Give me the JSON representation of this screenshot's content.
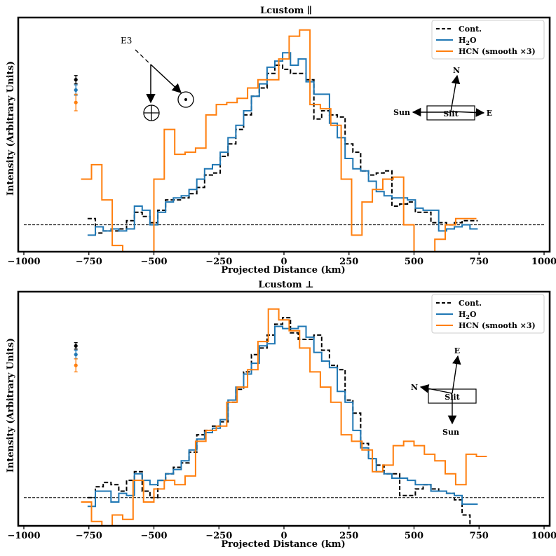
{
  "colors": {
    "cont": "#000000",
    "h2o": "#1f77b4",
    "hcn": "#ff7f0e",
    "baseline": "#000000"
  },
  "chart_data": [
    {
      "type": "line",
      "title": "Lcustom ∥",
      "xlabel": "Projected Distance (km)",
      "ylabel": "Intensity (Arbitrary Units)",
      "xlim": [
        -1000,
        1000
      ],
      "ylim": [
        -0.13,
        1.0
      ],
      "xticks": [
        -1000,
        -750,
        -500,
        -250,
        0,
        250,
        500,
        750,
        1000
      ],
      "xtick_labels": [
        "−1000",
        "−750",
        "−500",
        "−250",
        "0",
        "250",
        "500",
        "750",
        "1000"
      ],
      "baseline": 0,
      "legend": {
        "position": "top-right",
        "entries": [
          "Cont.",
          "H2O",
          "HCN (smooth ×3)"
        ]
      },
      "series": [
        {
          "name": "Cont.",
          "style": "dashed",
          "x": [
            -740,
            -710,
            -680,
            -650,
            -620,
            -590,
            -560,
            -530,
            -500,
            -470,
            -440,
            -410,
            -380,
            -350,
            -320,
            -290,
            -260,
            -230,
            -200,
            -170,
            -140,
            -110,
            -80,
            -50,
            -20,
            10,
            40,
            70,
            100,
            130,
            160,
            190,
            220,
            250,
            280,
            310,
            340,
            370,
            400,
            430,
            460,
            490,
            520,
            550,
            580,
            610,
            640,
            670,
            700,
            730
          ],
          "y": [
            0.03,
            -0.04,
            -0.03,
            -0.03,
            -0.02,
            0.02,
            0.06,
            0.04,
            0.01,
            0.07,
            0.12,
            0.12,
            0.13,
            0.15,
            0.18,
            0.24,
            0.25,
            0.33,
            0.39,
            0.46,
            0.53,
            0.62,
            0.66,
            0.73,
            0.77,
            0.75,
            0.73,
            0.73,
            0.7,
            0.51,
            0.55,
            0.53,
            0.52,
            0.39,
            0.35,
            0.26,
            0.24,
            0.25,
            0.26,
            0.09,
            0.1,
            0.11,
            0.06,
            0.06,
            0.01,
            0.01,
            0.0,
            0.01,
            0.02,
            0.02
          ]
        },
        {
          "name": "H2O",
          "style": "solid",
          "x": [
            -740,
            -710,
            -680,
            -650,
            -620,
            -590,
            -560,
            -530,
            -500,
            -470,
            -440,
            -410,
            -380,
            -350,
            -320,
            -290,
            -260,
            -230,
            -200,
            -170,
            -140,
            -110,
            -80,
            -50,
            -20,
            10,
            40,
            70,
            100,
            130,
            160,
            190,
            220,
            250,
            280,
            310,
            340,
            370,
            400,
            430,
            460,
            490,
            520,
            550,
            580,
            610,
            640,
            670,
            700,
            730
          ],
          "y": [
            -0.05,
            -0.01,
            -0.03,
            -0.02,
            -0.03,
            -0.02,
            0.09,
            0.07,
            0.0,
            0.06,
            0.11,
            0.13,
            0.14,
            0.17,
            0.22,
            0.27,
            0.29,
            0.35,
            0.42,
            0.48,
            0.55,
            0.62,
            0.68,
            0.76,
            0.79,
            0.83,
            0.77,
            0.8,
            0.69,
            0.63,
            0.63,
            0.49,
            0.42,
            0.32,
            0.27,
            0.26,
            0.21,
            0.16,
            0.14,
            0.13,
            0.13,
            0.12,
            0.08,
            0.07,
            0.07,
            -0.03,
            -0.02,
            -0.01,
            0.0,
            -0.02
          ]
        },
        {
          "name": "HCN (smooth ×3)",
          "style": "solid",
          "x": [
            -760,
            -720,
            -680,
            -640,
            -600,
            -560,
            -520,
            -480,
            -440,
            -400,
            -360,
            -320,
            -280,
            -240,
            -200,
            -160,
            -120,
            -80,
            -40,
            0,
            40,
            80,
            120,
            160,
            200,
            240,
            280,
            320,
            360,
            400,
            440,
            480,
            520,
            560,
            600,
            640,
            680,
            720
          ],
          "y": [
            0.22,
            0.29,
            0.12,
            -0.1,
            -0.15,
            -0.2,
            -0.14,
            0.22,
            0.46,
            0.34,
            0.35,
            0.37,
            0.53,
            0.58,
            0.59,
            0.61,
            0.66,
            0.7,
            0.7,
            0.8,
            0.91,
            0.94,
            0.58,
            0.56,
            0.48,
            0.22,
            -0.05,
            0.11,
            0.17,
            0.22,
            0.23,
            0.0,
            -0.16,
            -0.15,
            -0.07,
            0.0,
            0.03,
            0.03
          ]
        }
      ],
      "error_bars": [
        {
          "series": "Cont.",
          "x": -800,
          "y": 0.7,
          "err": 0.02
        },
        {
          "series": "H2O",
          "x": -800,
          "y": 0.65,
          "err": 0.025
        },
        {
          "series": "HCN (smooth ×3)",
          "x": -800,
          "y": 0.59,
          "err": 0.04
        }
      ],
      "annotations": {
        "event_label": "E3",
        "earth_symbol": "⊕",
        "sun_symbol": "⊙",
        "compass": {
          "up": "N",
          "left": "Sun",
          "right": "E",
          "box": "Slit"
        }
      }
    },
    {
      "type": "line",
      "title": "Lcustom ⊥",
      "xlabel": "Projected Distance (km)",
      "ylabel": "Intensity (Arbitrary Units)",
      "xlim": [
        -1000,
        1000
      ],
      "ylim": [
        -0.13,
        0.95
      ],
      "xticks": [
        -1000,
        -750,
        -500,
        -250,
        0,
        250,
        500,
        750,
        1000
      ],
      "xtick_labels": [
        "−1000",
        "−750",
        "−500",
        "−250",
        "0",
        "250",
        "500",
        "750",
        "1000"
      ],
      "baseline": 0,
      "legend": {
        "position": "top-right",
        "entries": [
          "Cont.",
          "H2O",
          "HCN (smooth ×3)"
        ]
      },
      "series": [
        {
          "name": "Cont.",
          "style": "dashed",
          "x": [
            -740,
            -710,
            -680,
            -650,
            -620,
            -590,
            -560,
            -530,
            -500,
            -470,
            -440,
            -410,
            -380,
            -350,
            -320,
            -290,
            -260,
            -230,
            -200,
            -170,
            -140,
            -110,
            -80,
            -50,
            -20,
            10,
            40,
            70,
            100,
            130,
            160,
            190,
            220,
            250,
            280,
            310,
            340,
            370,
            400,
            430,
            460,
            490,
            520,
            550,
            580,
            610,
            640,
            670,
            700,
            730
          ],
          "y": [
            0.0,
            0.05,
            0.07,
            0.06,
            0.03,
            0.08,
            0.12,
            0.03,
            0.0,
            0.08,
            0.11,
            0.14,
            0.16,
            0.21,
            0.29,
            0.31,
            0.33,
            0.35,
            0.44,
            0.5,
            0.58,
            0.66,
            0.69,
            0.75,
            0.8,
            0.83,
            0.76,
            0.73,
            0.73,
            0.75,
            0.68,
            0.61,
            0.59,
            0.45,
            0.39,
            0.25,
            0.18,
            0.15,
            0.11,
            0.11,
            0.01,
            0.01,
            0.04,
            0.06,
            0.04,
            0.03,
            0.02,
            -0.01,
            -0.08,
            -0.13
          ]
        },
        {
          "name": "H2O",
          "style": "solid",
          "x": [
            -740,
            -710,
            -680,
            -650,
            -620,
            -590,
            -560,
            -530,
            -500,
            -470,
            -440,
            -410,
            -380,
            -350,
            -320,
            -290,
            -260,
            -230,
            -200,
            -170,
            -140,
            -110,
            -80,
            -50,
            -20,
            10,
            40,
            70,
            100,
            130,
            160,
            190,
            220,
            250,
            280,
            310,
            340,
            370,
            400,
            430,
            460,
            490,
            520,
            550,
            580,
            610,
            640,
            670,
            700,
            730
          ],
          "y": [
            -0.04,
            0.03,
            0.03,
            -0.02,
            0.02,
            0.01,
            0.11,
            0.08,
            0.06,
            0.08,
            0.11,
            0.13,
            0.17,
            0.22,
            0.27,
            0.3,
            0.32,
            0.36,
            0.45,
            0.51,
            0.57,
            0.62,
            0.7,
            0.71,
            0.79,
            0.78,
            0.78,
            0.79,
            0.74,
            0.67,
            0.63,
            0.6,
            0.49,
            0.44,
            0.31,
            0.23,
            0.18,
            0.12,
            0.11,
            0.09,
            0.09,
            0.08,
            0.06,
            0.06,
            0.03,
            0.03,
            0.02,
            0.01,
            -0.03,
            -0.03
          ]
        },
        {
          "name": "HCN (smooth ×3)",
          "style": "solid",
          "x": [
            -760,
            -720,
            -680,
            -640,
            -600,
            -560,
            -520,
            -480,
            -440,
            -400,
            -360,
            -320,
            -280,
            -240,
            -200,
            -160,
            -120,
            -80,
            -40,
            0,
            40,
            80,
            120,
            160,
            200,
            240,
            280,
            320,
            360,
            400,
            440,
            480,
            520,
            560,
            600,
            640,
            680,
            720,
            760
          ],
          "y": [
            -0.02,
            -0.11,
            -0.13,
            -0.08,
            -0.1,
            0.08,
            -0.02,
            0.04,
            0.08,
            0.06,
            0.1,
            0.26,
            0.31,
            0.33,
            0.44,
            0.51,
            0.59,
            0.72,
            0.87,
            0.82,
            0.77,
            0.69,
            0.58,
            0.51,
            0.44,
            0.29,
            0.26,
            0.22,
            0.12,
            0.15,
            0.24,
            0.26,
            0.24,
            0.2,
            0.17,
            0.11,
            0.06,
            0.2,
            0.19
          ]
        }
      ],
      "error_bars": [
        {
          "series": "Cont.",
          "x": -800,
          "y": 0.7,
          "err": 0.015
        },
        {
          "series": "H2O",
          "x": -800,
          "y": 0.66,
          "err": 0.02
        },
        {
          "series": "HCN (smooth ×3)",
          "x": -800,
          "y": 0.61,
          "err": 0.03
        }
      ],
      "annotations": {
        "compass": {
          "up": "E",
          "left": "N",
          "down": "Sun",
          "box": "Slit"
        }
      }
    }
  ]
}
